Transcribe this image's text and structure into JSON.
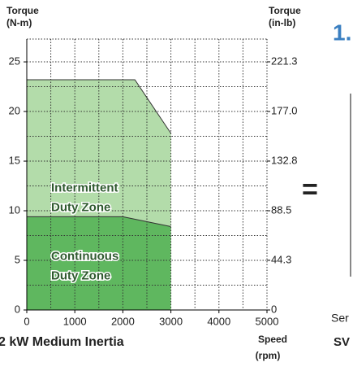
{
  "chart_data": {
    "type": "area",
    "y_label_top": "Torque",
    "y_label_bottom": "(N-m)",
    "y2_label_top": "Torque",
    "y2_label_bottom": "(in-lb)",
    "x_label_top": "Speed",
    "x_label_bottom": "(rpm)",
    "title": "2 kW Medium Inertia",
    "series": [
      {
        "name": "Intermittent Duty Zone",
        "name_lines": [
          "Intermittent",
          "Duty Zone"
        ],
        "color": "#b3dcaa",
        "x": [
          0,
          2250,
          3000
        ],
        "values": [
          23.2,
          23.2,
          17.8
        ]
      },
      {
        "name": "Continuous Duty Zone",
        "name_lines": [
          "Continuous",
          "Duty Zone"
        ],
        "color": "#5fb75f",
        "x": [
          0,
          2000,
          3000
        ],
        "values": [
          9.4,
          9.4,
          8.4
        ]
      }
    ],
    "xlim": [
      0,
      5000
    ],
    "xticks": [
      0,
      1000,
      2000,
      3000,
      4000,
      5000
    ],
    "ylim": [
      0,
      27.3
    ],
    "yticks": [
      0,
      5,
      10,
      15,
      20,
      25
    ],
    "y2lim": [
      0,
      241.6
    ],
    "y2ticks": [
      0,
      44.3,
      88.5,
      132.8,
      {
        "value": 177.0,
        "label": "177.0"
      },
      221.3
    ],
    "grid": true
  },
  "side": {
    "step": "1.",
    "equals": "=",
    "text1": "Ser",
    "text2": "SV"
  }
}
